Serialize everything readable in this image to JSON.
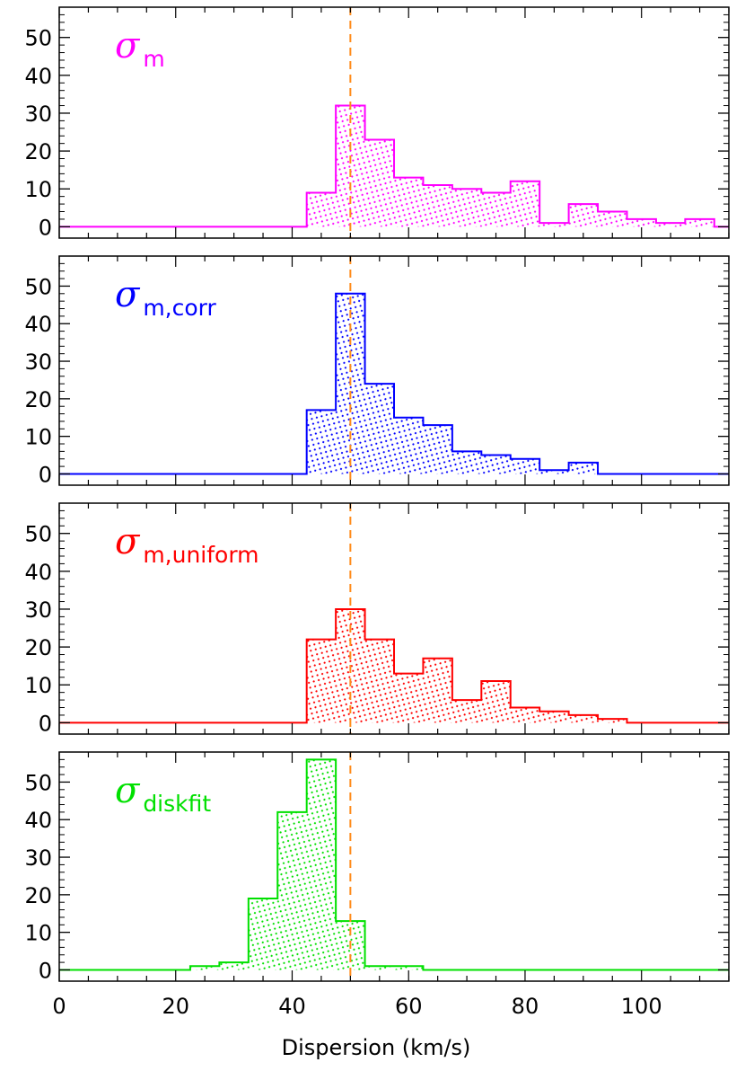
{
  "chart_data": {
    "type": "histogram",
    "xlabel": "Dispersion (km/s)",
    "xlim": [
      0,
      115
    ],
    "xticks": [
      0,
      20,
      40,
      60,
      80,
      100
    ],
    "reference_line": {
      "x": 50,
      "color": "#ff8c1a",
      "style": "dashed"
    },
    "bin_width": 5,
    "panels": [
      {
        "symbol": "σ",
        "subscript": "m",
        "color": "#ff00ff",
        "ylim": [
          -3,
          58
        ],
        "yticks": [
          0,
          10,
          20,
          30,
          40,
          50
        ],
        "bins_start": [
          42.5,
          47.5,
          52.5,
          57.5,
          62.5,
          67.5,
          72.5,
          77.5,
          82.5,
          87.5,
          92.5,
          97.5,
          102.5,
          107.5
        ],
        "counts": [
          9,
          32,
          23,
          13,
          11,
          10,
          9,
          12,
          1,
          6,
          4,
          2,
          1,
          2
        ]
      },
      {
        "symbol": "σ",
        "subscript": "m,corr",
        "color": "#0000ff",
        "ylim": [
          -3,
          58
        ],
        "yticks": [
          0,
          10,
          20,
          30,
          40,
          50
        ],
        "bins_start": [
          42.5,
          47.5,
          52.5,
          57.5,
          62.5,
          67.5,
          72.5,
          77.5,
          82.5,
          87.5
        ],
        "counts": [
          17,
          48,
          24,
          15,
          13,
          6,
          5,
          4,
          1,
          3
        ]
      },
      {
        "symbol": "σ",
        "subscript": "m,uniform",
        "color": "#ff0000",
        "ylim": [
          -3,
          58
        ],
        "yticks": [
          0,
          10,
          20,
          30,
          40,
          50
        ],
        "bins_start": [
          42.5,
          47.5,
          52.5,
          57.5,
          62.5,
          67.5,
          72.5,
          77.5,
          82.5,
          87.5,
          92.5
        ],
        "counts": [
          22,
          30,
          22,
          13,
          17,
          6,
          11,
          4,
          3,
          2,
          1
        ]
      },
      {
        "symbol": "σ",
        "subscript": "diskfit",
        "color": "#00e000",
        "ylim": [
          -3,
          58
        ],
        "yticks": [
          0,
          10,
          20,
          30,
          40,
          50
        ],
        "bins_start": [
          22.5,
          27.5,
          32.5,
          37.5,
          42.5,
          47.5,
          52.5,
          57.5
        ],
        "counts": [
          1,
          2,
          19,
          42,
          56,
          13,
          1,
          1
        ]
      }
    ]
  }
}
